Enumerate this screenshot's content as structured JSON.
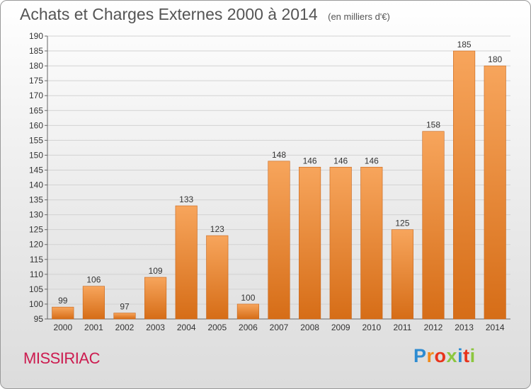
{
  "header": {
    "title": "Achats et Charges Externes 2000 à 2014",
    "unit_note": "(en milliers d'€)"
  },
  "footer": {
    "commune": "MISSIRIAC",
    "logo_letters": [
      "P",
      "r",
      "o",
      "x",
      "i",
      "t",
      "i"
    ],
    "logo_colors": [
      "#2d8bd1",
      "#f28a1c",
      "#e8331c",
      "#8cc63f",
      "#2d8bd1",
      "#e8331c",
      "#8cc63f"
    ]
  },
  "chart_data": {
    "type": "bar",
    "title": "Achats et Charges Externes 2000 à 2014",
    "subtitle": "(en milliers d'€)",
    "xlabel": "",
    "ylabel": "",
    "categories": [
      "2000",
      "2001",
      "2002",
      "2003",
      "2004",
      "2005",
      "2006",
      "2007",
      "2008",
      "2009",
      "2010",
      "2011",
      "2012",
      "2013",
      "2014"
    ],
    "values": [
      99,
      106,
      97,
      109,
      133,
      123,
      100,
      148,
      146,
      146,
      146,
      125,
      158,
      185,
      180
    ],
    "ylim": [
      95,
      190
    ],
    "yticks": [
      95,
      100,
      105,
      110,
      115,
      120,
      125,
      130,
      135,
      140,
      145,
      150,
      155,
      160,
      165,
      170,
      175,
      180,
      185,
      190
    ],
    "grid": true,
    "legend": "none",
    "bar_color": "#f0903a"
  }
}
